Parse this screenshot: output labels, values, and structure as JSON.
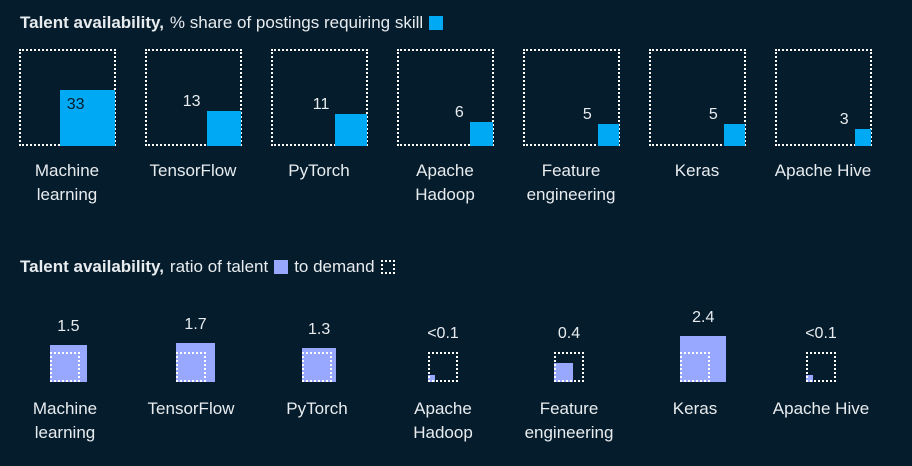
{
  "chart_data": [
    {
      "type": "square-area",
      "title_bold": "Talent availability,",
      "title": "% share of postings requiring skill",
      "categories": [
        "Machine learning",
        "TensorFlow",
        "PyTorch",
        "Apache Hadoop",
        "Feature engineering",
        "Keras",
        "Apache Hive"
      ],
      "values": [
        33,
        13,
        11,
        6,
        5,
        5,
        3
      ],
      "color": "#00a9f4",
      "ylim": [
        0,
        100
      ]
    },
    {
      "type": "square-ratio",
      "title_bold": "Talent availability,",
      "title": "ratio of talent",
      "title_end": "to demand",
      "categories": [
        "Machine learning",
        "TensorFlow",
        "PyTorch",
        "Apache Hadoop",
        "Feature engineering",
        "Keras",
        "Apache Hive"
      ],
      "values": [
        1.5,
        1.7,
        1.3,
        0.05,
        0.4,
        2.4,
        0.05
      ],
      "value_labels": [
        "1.5",
        "1.7",
        "1.3",
        "<0.1",
        "0.4",
        "2.4",
        "<0.1"
      ],
      "color": "#99a8ff",
      "ylim": [
        0,
        1
      ]
    }
  ]
}
